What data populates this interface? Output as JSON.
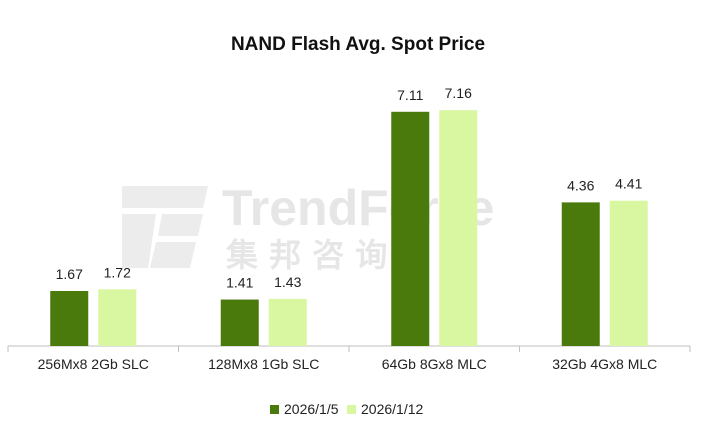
{
  "chart_data": {
    "type": "bar",
    "title": "NAND Flash Avg. Spot Price",
    "categories": [
      "256Mx8 2Gb SLC",
      "128Mx8 1Gb SLC",
      "64Gb 8Gx8 MLC",
      "32Gb 4Gx8 MLC"
    ],
    "series": [
      {
        "name": "2026/1/5",
        "color": "#4a7a0c",
        "values": [
          1.67,
          1.41,
          7.11,
          4.36
        ],
        "labels": [
          "1.67",
          "1.41",
          "7.11",
          "4.36"
        ]
      },
      {
        "name": "2026/1/12",
        "color": "#d9f7a0",
        "values": [
          1.72,
          1.43,
          7.16,
          4.41
        ],
        "labels": [
          "1.72",
          "1.43",
          "7.16",
          "4.41"
        ]
      }
    ],
    "xlabel": "",
    "ylabel": "",
    "ylim": [
      0,
      8.5
    ],
    "grid": false,
    "legend_position": "bottom-center"
  },
  "watermark": {
    "brand": "TrendForce",
    "brand_cn": "集 邦 咨 询"
  }
}
